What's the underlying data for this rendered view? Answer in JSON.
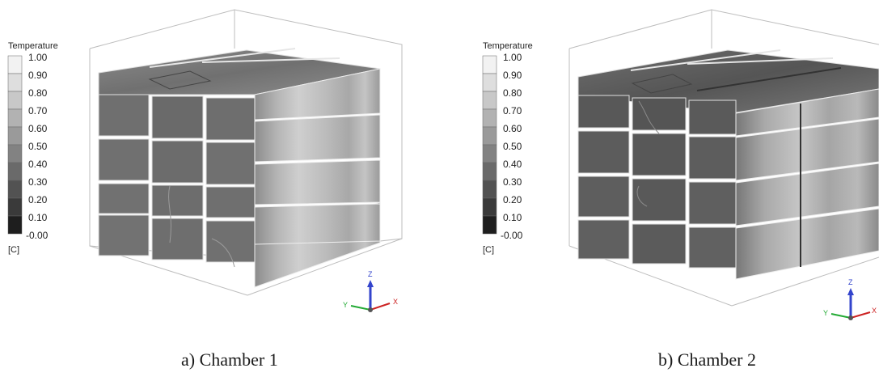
{
  "figures": [
    {
      "caption": "a) Chamber 1",
      "legend": {
        "title": "Temperature",
        "unit": "[C]",
        "ticks": [
          "1.00",
          "0.90",
          "0.80",
          "0.70",
          "0.60",
          "0.50",
          "0.40",
          "0.30",
          "0.20",
          "0.10",
          "-0.00"
        ]
      },
      "axes": {
        "z": "Z",
        "x": "X",
        "y": "Y"
      }
    },
    {
      "caption": "b) Chamber 2",
      "legend": {
        "title": "Temperature",
        "unit": "[C]",
        "ticks": [
          "1.00",
          "0.90",
          "0.80",
          "0.70",
          "0.60",
          "0.50",
          "0.40",
          "0.30",
          "0.20",
          "0.10",
          "-0.00"
        ]
      },
      "axes": {
        "z": "Z",
        "x": "X",
        "y": "Y"
      }
    }
  ],
  "colors": {
    "scale_top": "#f4f4f4",
    "scale_bottom": "#101010",
    "axis_z": "#3344cc",
    "axis_x": "#cc2222",
    "axis_y": "#22aa33"
  }
}
